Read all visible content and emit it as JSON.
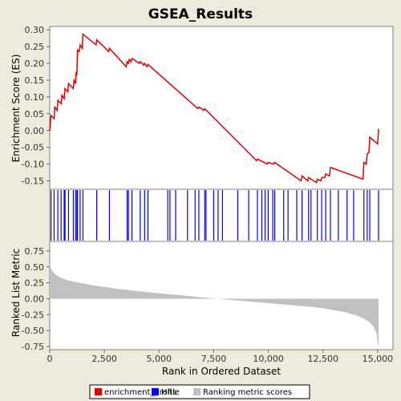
{
  "chart_data": [
    {
      "type": "line",
      "title": "GSEA_Results",
      "ylabel": "Enrichment Score (ES)",
      "xlabel": "",
      "series": [
        {
          "name": "enrichment_profile",
          "color": "#dd0000",
          "x": [
            0,
            60,
            200,
            230,
            340,
            370,
            520,
            560,
            660,
            700,
            830,
            860,
            1080,
            1110,
            1180,
            1210,
            1240,
            1270,
            1350,
            1390,
            1490,
            1520,
            2120,
            2150,
            2700,
            2730,
            3500,
            3540,
            3600,
            3640,
            3720,
            3760,
            4100,
            4140,
            4300,
            4340,
            4450,
            4490,
            6780,
            6820,
            7050,
            7090,
            9460,
            9500,
            9950,
            9990,
            10250,
            10290,
            11500,
            11540,
            11800,
            11840,
            12200,
            12240,
            12400,
            12440,
            12580,
            12620,
            12800,
            12840,
            14330,
            14370,
            14480,
            14520,
            14600,
            14640,
            15000,
            15040
          ],
          "y": [
            0.0,
            0.045,
            0.035,
            0.07,
            0.06,
            0.09,
            0.08,
            0.105,
            0.095,
            0.125,
            0.115,
            0.14,
            0.125,
            0.15,
            0.14,
            0.175,
            0.165,
            0.24,
            0.235,
            0.255,
            0.245,
            0.287,
            0.255,
            0.27,
            0.235,
            0.245,
            0.19,
            0.205,
            0.2,
            0.212,
            0.205,
            0.215,
            0.2,
            0.205,
            0.195,
            0.2,
            0.19,
            0.197,
            0.065,
            0.07,
            0.06,
            0.065,
            -0.09,
            -0.085,
            -0.1,
            -0.095,
            -0.1,
            -0.095,
            -0.15,
            -0.135,
            -0.15,
            -0.14,
            -0.155,
            -0.145,
            -0.15,
            -0.14,
            -0.14,
            -0.13,
            -0.135,
            -0.11,
            -0.145,
            -0.095,
            -0.1,
            -0.07,
            -0.065,
            -0.02,
            -0.04,
            0.005
          ]
        }
      ],
      "xlim": [
        0,
        15700
      ],
      "ylim": [
        -0.175,
        0.31
      ],
      "yticks": [
        0.3,
        0.25,
        0.2,
        0.15,
        0.1,
        0.05,
        0.0,
        -0.05,
        -0.1,
        -0.15
      ],
      "ytick_labels": [
        "0.30",
        "0.25",
        "0.20",
        "0.15",
        "0.10",
        "0.05",
        "0.00",
        "-0.05",
        "-0.10",
        "-0.15"
      ],
      "grid": false
    },
    {
      "type": "scatter",
      "title": "",
      "series": [
        {
          "name": "Hits",
          "color": "#0000ff",
          "x": [
            60,
            200,
            370,
            520,
            660,
            700,
            860,
            1080,
            1180,
            1240,
            1270,
            1390,
            1520,
            2150,
            2730,
            3540,
            3600,
            3760,
            4140,
            4340,
            4490,
            5400,
            5500,
            5760,
            6300,
            6650,
            6820,
            7090,
            7150,
            7500,
            7700,
            7900,
            8600,
            9100,
            9500,
            9700,
            9850,
            9990,
            10200,
            10290,
            10700,
            10900,
            11300,
            11540,
            11840,
            11950,
            12240,
            12440,
            12620,
            12840,
            13200,
            13600,
            13900,
            14370,
            14520,
            14640,
            15040
          ]
        }
      ],
      "xlim": [
        0,
        15700
      ]
    },
    {
      "type": "area",
      "title": "",
      "ylabel": "Ranked List Metric",
      "xlabel": "Rank in Ordered Dataset",
      "series": [
        {
          "name": "Ranking metric scores",
          "color": "#c0c0c0",
          "x": [
            0,
            50,
            150,
            300,
            500,
            800,
            1200,
            2000,
            3000,
            4000,
            5000,
            6000,
            7000,
            7500,
            8000,
            9000,
            10000,
            11000,
            12000,
            12500,
            13000,
            13500,
            14000,
            14300,
            14600,
            14800,
            14950,
            15000,
            15040
          ],
          "y": [
            0.55,
            0.47,
            0.42,
            0.37,
            0.33,
            0.29,
            0.26,
            0.21,
            0.16,
            0.12,
            0.085,
            0.055,
            0.02,
            0.005,
            -0.01,
            -0.04,
            -0.07,
            -0.1,
            -0.13,
            -0.15,
            -0.18,
            -0.21,
            -0.26,
            -0.3,
            -0.36,
            -0.43,
            -0.55,
            -0.7,
            -0.75
          ]
        }
      ],
      "xlim": [
        0,
        15700
      ],
      "ylim": [
        -0.8,
        0.9
      ],
      "yticks": [
        0.75,
        0.5,
        0.25,
        0.0,
        -0.25,
        -0.5,
        -0.75
      ],
      "ytick_labels": [
        "0.75",
        "0.50",
        "0.25",
        "0.00",
        "-0.25",
        "-0.50",
        "-0.75"
      ],
      "xticks": [
        0,
        2500,
        5000,
        7500,
        10000,
        12500,
        15000
      ],
      "xtick_labels": [
        "0",
        "2,500",
        "5,000",
        "7,500",
        "10,000",
        "12,500",
        "15,000"
      ],
      "grid": false
    }
  ],
  "legend": {
    "placement": "bottom",
    "entries": [
      {
        "label": "enrichment_profile",
        "color": "#dd0000"
      },
      {
        "label": "Hits",
        "color": "#0000ff"
      },
      {
        "label": "Ranking metric scores",
        "color": "#c0c0c0"
      }
    ]
  }
}
